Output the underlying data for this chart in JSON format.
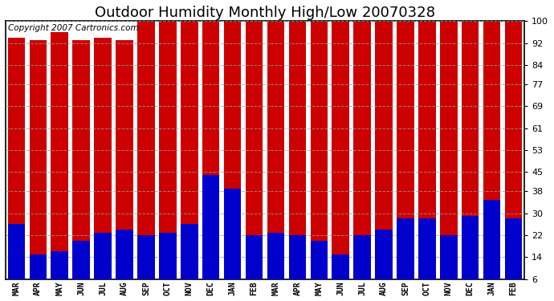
{
  "title": "Outdoor Humidity Monthly High/Low 20070328",
  "copyright_text": "Copyright 2007 Cartronics.com",
  "categories": [
    "MAR",
    "APR",
    "MAY",
    "JUN",
    "JUL",
    "AUG",
    "SEP",
    "OCT",
    "NOV",
    "DEC",
    "JAN",
    "FEB",
    "MAR",
    "APR",
    "MAY",
    "JUN",
    "JUL",
    "AUG",
    "SEP",
    "OCT",
    "NOV",
    "DEC",
    "JAN",
    "FEB"
  ],
  "highs": [
    94,
    93,
    96,
    93,
    94,
    93,
    100,
    100,
    100,
    100,
    100,
    100,
    100,
    100,
    100,
    100,
    100,
    100,
    100,
    100,
    100,
    100,
    100,
    100
  ],
  "lows": [
    26,
    15,
    16,
    20,
    23,
    24,
    22,
    23,
    26,
    44,
    39,
    22,
    23,
    22,
    20,
    15,
    22,
    24,
    28,
    28,
    22,
    29,
    35,
    28
  ],
  "high_color": "#cc0000",
  "low_color": "#0000cc",
  "bg_color": "#ffffff",
  "plot_bg_color": "#ffffff",
  "grid_color": "#999999",
  "yticks": [
    6,
    14,
    22,
    30,
    38,
    45,
    53,
    61,
    69,
    77,
    84,
    92,
    100
  ],
  "ymin": 6,
  "ymax": 100,
  "title_fontsize": 13,
  "bar_width": 0.8,
  "copyright_fontsize": 7.5
}
